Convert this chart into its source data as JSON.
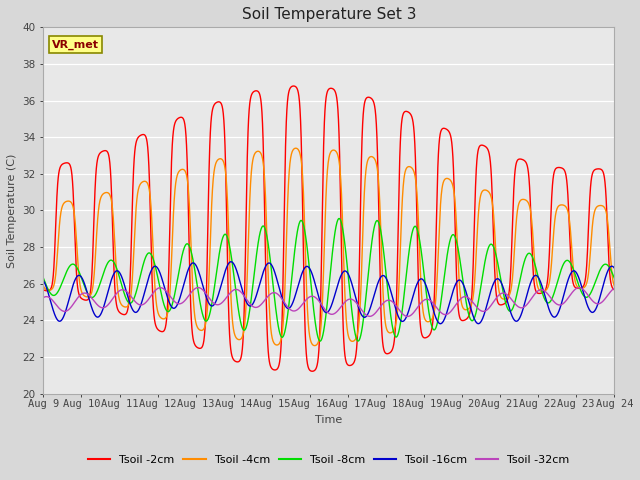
{
  "title": "Soil Temperature Set 3",
  "xlabel": "Time",
  "ylabel": "Soil Temperature (C)",
  "ylim": [
    20,
    40
  ],
  "xlim": [
    0,
    15
  ],
  "background_color": "#d8d8d8",
  "plot_bg_color": "#e8e8e8",
  "annotation_text": "VR_met",
  "annotation_color": "#8B0000",
  "annotation_bg": "#ffff88",
  "annotation_border": "#888800",
  "x_tick_labels": [
    "Aug 9",
    "Aug 10",
    "Aug 11",
    "Aug 12",
    "Aug 13",
    "Aug 14",
    "Aug 15",
    "Aug 16",
    "Aug 17",
    "Aug 18",
    "Aug 19",
    "Aug 20",
    "Aug 21",
    "Aug 22",
    "Aug 23",
    "Aug 24"
  ],
  "colors": {
    "Tsoil -2cm": "#ff0000",
    "Tsoil -4cm": "#ff8c00",
    "Tsoil -8cm": "#00dd00",
    "Tsoil -16cm": "#0000cc",
    "Tsoil -32cm": "#bb44bb"
  },
  "legend_fontsize": 8,
  "title_fontsize": 11,
  "axis_label_fontsize": 8,
  "tick_fontsize": 7.5
}
